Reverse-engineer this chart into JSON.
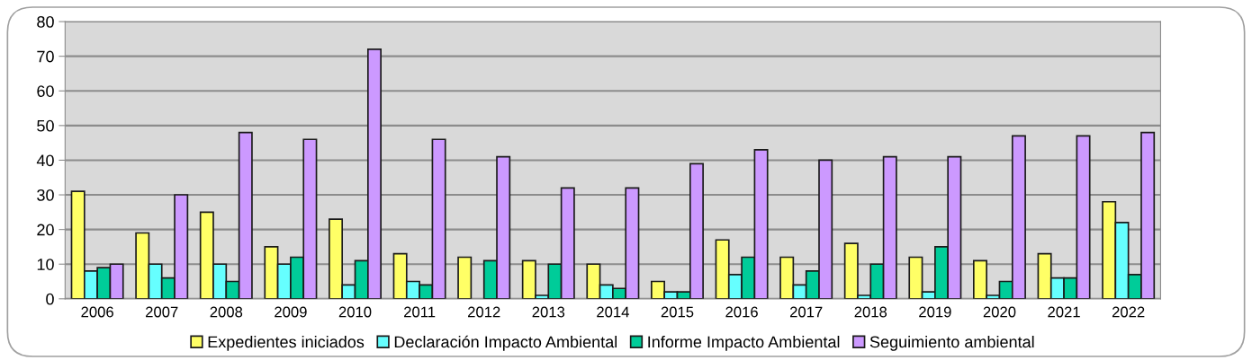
{
  "chart_data": {
    "type": "bar",
    "categories": [
      "2006",
      "2007",
      "2008",
      "2009",
      "2010",
      "2011",
      "2012",
      "2013",
      "2014",
      "2015",
      "2016",
      "2017",
      "2018",
      "2019",
      "2020",
      "2021",
      "2022"
    ],
    "series": [
      {
        "name": "Expedientes iniciados",
        "color": "#ffff66",
        "values": [
          31,
          19,
          25,
          15,
          23,
          13,
          12,
          11,
          10,
          5,
          17,
          12,
          16,
          12,
          11,
          13,
          28
        ]
      },
      {
        "name": "Declaración Impacto Ambiental",
        "color": "#66ffff",
        "values": [
          8,
          10,
          10,
          10,
          4,
          5,
          0,
          1,
          4,
          2,
          7,
          4,
          1,
          2,
          1,
          6,
          22
        ]
      },
      {
        "name": "Informe Impacto Ambiental",
        "color": "#00cc99",
        "values": [
          9,
          6,
          5,
          12,
          11,
          4,
          11,
          10,
          3,
          2,
          12,
          8,
          10,
          15,
          5,
          6,
          7
        ]
      },
      {
        "name": "Seguimiento ambiental",
        "color": "#cc99ff",
        "values": [
          10,
          30,
          48,
          46,
          72,
          46,
          41,
          32,
          32,
          39,
          43,
          40,
          41,
          41,
          47,
          47,
          48
        ]
      }
    ],
    "ylim": [
      0,
      80
    ],
    "yticks": [
      0,
      10,
      20,
      30,
      40,
      50,
      60,
      70,
      80
    ],
    "grid": "y",
    "legend": "bottom"
  }
}
